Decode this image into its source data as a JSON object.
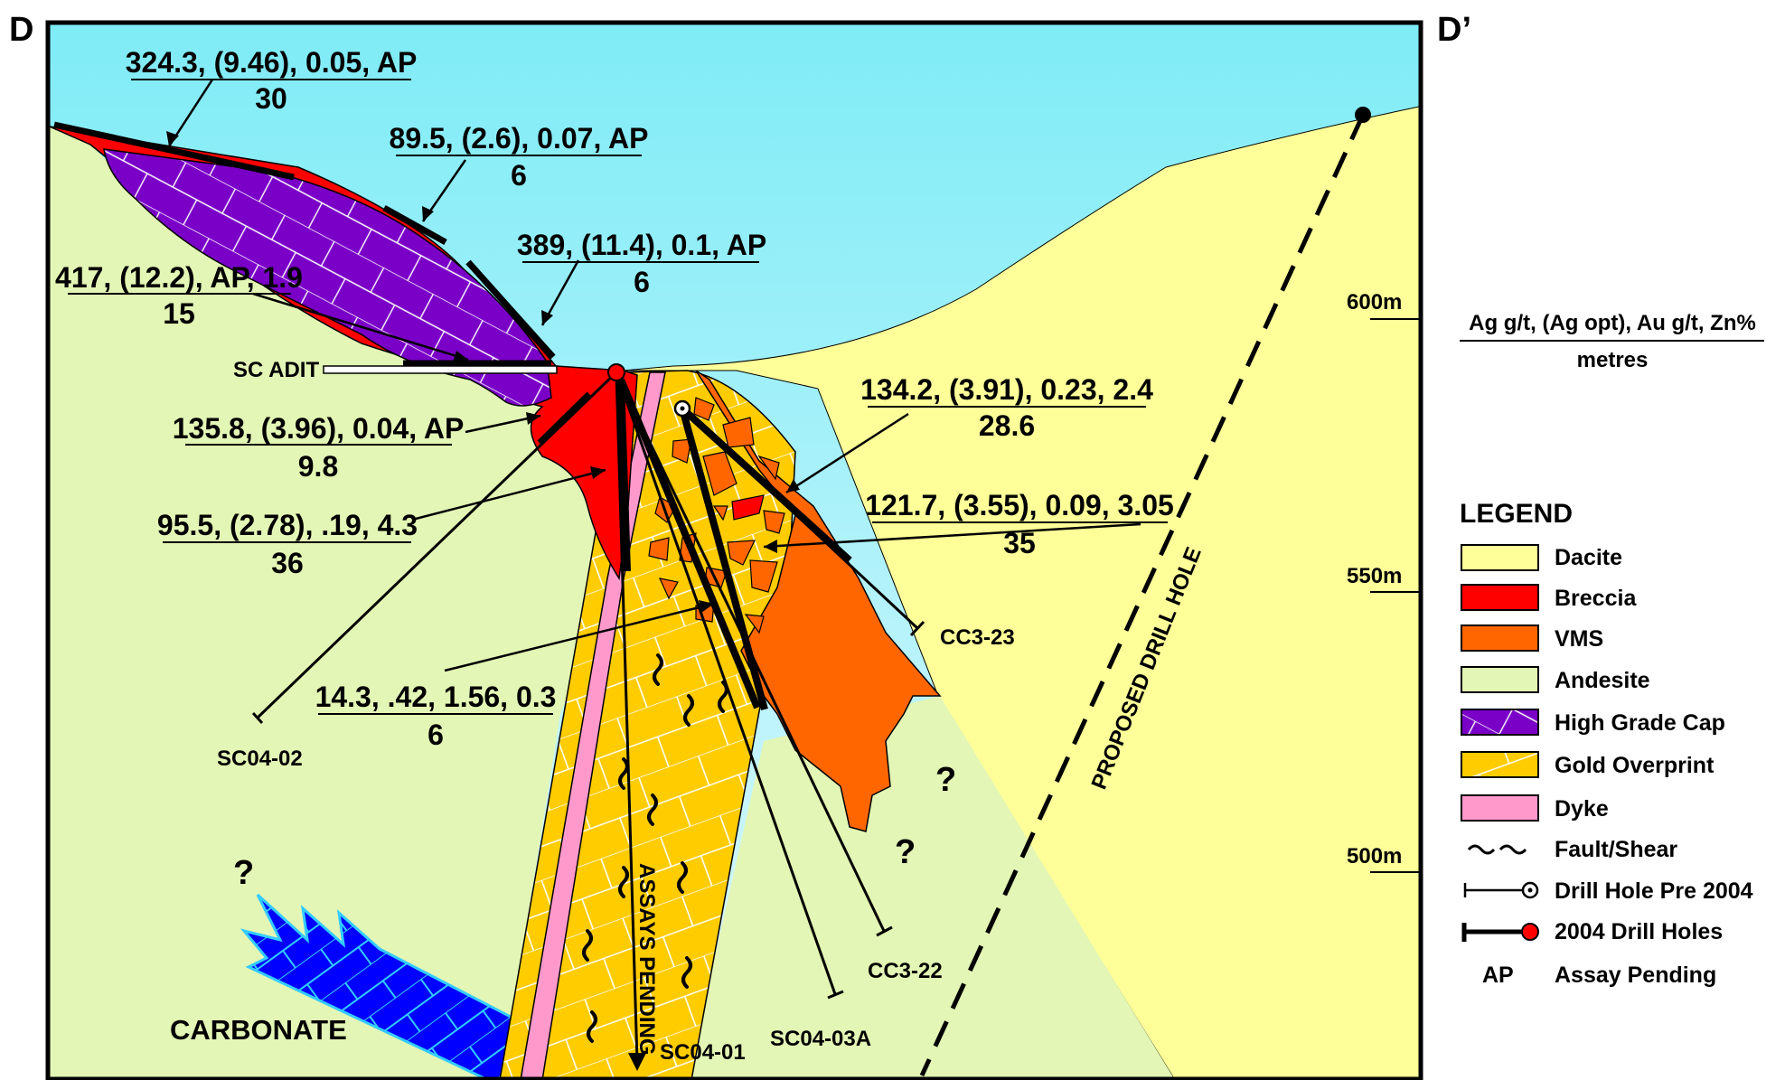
{
  "section": {
    "left_label": "D",
    "right_label": "D’"
  },
  "colors": {
    "sky": "#7fecf6",
    "dacite": "#ffff99",
    "breccia": "#ff0000",
    "vms": "#ff6600",
    "andesite": "#e3f6b5",
    "high_grade_cap": "#7a00c8",
    "gold_overprint": "#ffcc00",
    "dyke": "#ff99cc",
    "carbonate": "#0000ff"
  },
  "elevations": [
    "600m",
    "550m",
    "500m"
  ],
  "adit_label": "SC ADIT",
  "intercepts": [
    {
      "assay": "324.3, (9.46), 0.05, AP",
      "metres": "30"
    },
    {
      "assay": "89.5, (2.6), 0.07, AP",
      "metres": "6"
    },
    {
      "assay": "389, (11.4), 0.1, AP",
      "metres": "6"
    },
    {
      "assay": "417, (12.2), AP, 1.9",
      "metres": "15"
    },
    {
      "assay": "135.8, (3.96), 0.04, AP",
      "metres": "9.8"
    },
    {
      "assay": "95.5, (2.78), .19, 4.3",
      "metres": "36"
    },
    {
      "assay": "14.3, .42, 1.56, 0.3",
      "metres": "6"
    },
    {
      "assay": "134.2, (3.91), 0.23, 2.4",
      "metres": "28.6"
    },
    {
      "assay": "121.7, (3.55), 0.09, 3.05",
      "metres": "35"
    }
  ],
  "holes": {
    "sc04_02": "SC04-02",
    "sc04_01": "SC04-01",
    "sc04_03a": "SC04-03A",
    "cc3_22": "CC3-22",
    "cc3_23": "CC3-23"
  },
  "assays_pending": "ASSAYS PENDING",
  "proposed_hole": "PROPOSED DRILL HOLE",
  "carbonate_label": "CARBONATE",
  "unknown_mark": "?",
  "key": {
    "top": "Ag g/t, (Ag opt), Au g/t, Zn%",
    "bottom": "metres"
  },
  "legend": {
    "title": "LEGEND",
    "items": [
      {
        "label": "Dacite",
        "swatch": "dacite"
      },
      {
        "label": "Breccia",
        "swatch": "breccia"
      },
      {
        "label": "VMS",
        "swatch": "vms"
      },
      {
        "label": "Andesite",
        "swatch": "andesite"
      },
      {
        "label": "High Grade Cap",
        "swatch": "high_grade_cap"
      },
      {
        "label": "Gold Overprint",
        "swatch": "gold_overprint"
      },
      {
        "label": "Dyke",
        "swatch": "dyke"
      },
      {
        "label": "Fault/Shear",
        "swatch": "fault"
      },
      {
        "label": "Drill Hole Pre 2004",
        "swatch": "hole-pre"
      },
      {
        "label": "2004 Drill Holes",
        "swatch": "hole-2004"
      },
      {
        "label": "Assay Pending",
        "swatch": "ap"
      }
    ],
    "ap_symbol": "AP"
  }
}
